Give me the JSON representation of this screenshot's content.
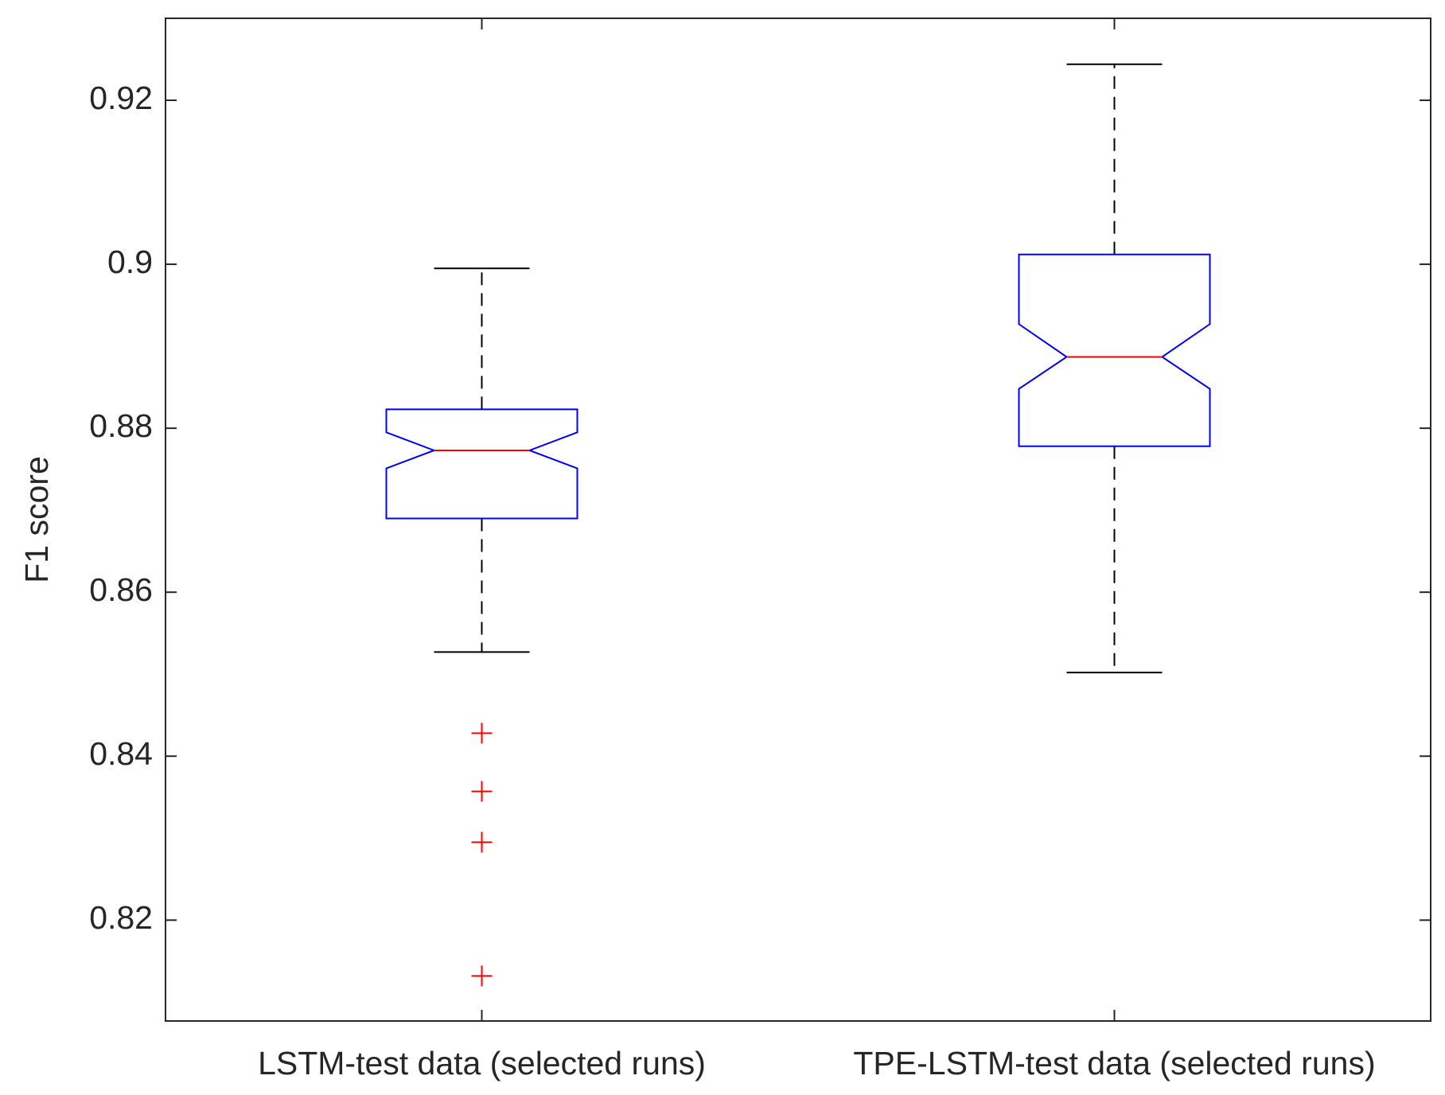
{
  "chart_data": {
    "type": "box",
    "ylabel": "F1 score",
    "categories": [
      "LSTM-test data (selected runs)",
      "TPE-LSTM-test data (selected runs)"
    ],
    "boxes": [
      {
        "whisker_low": 0.8527,
        "q1": 0.869,
        "notch_low": 0.8751,
        "median": 0.8773,
        "notch_high": 0.8795,
        "q3": 0.8823,
        "whisker_high": 0.8995,
        "outliers": [
          0.8428,
          0.8357,
          0.8295,
          0.8132
        ]
      },
      {
        "whisker_low": 0.8502,
        "q1": 0.8778,
        "notch_low": 0.8848,
        "median": 0.8887,
        "notch_high": 0.8927,
        "q3": 0.9012,
        "whisker_high": 0.9244,
        "outliers": []
      }
    ],
    "box_color": "#0000ff",
    "median_color": "#ff0000",
    "whisker_color": "#000000",
    "outlier_color": "#ff0000",
    "ylim": [
      0.8077,
      0.93
    ],
    "yticks": [
      0.82,
      0.84,
      0.86,
      0.88,
      0.9,
      0.92
    ],
    "grid": false
  }
}
